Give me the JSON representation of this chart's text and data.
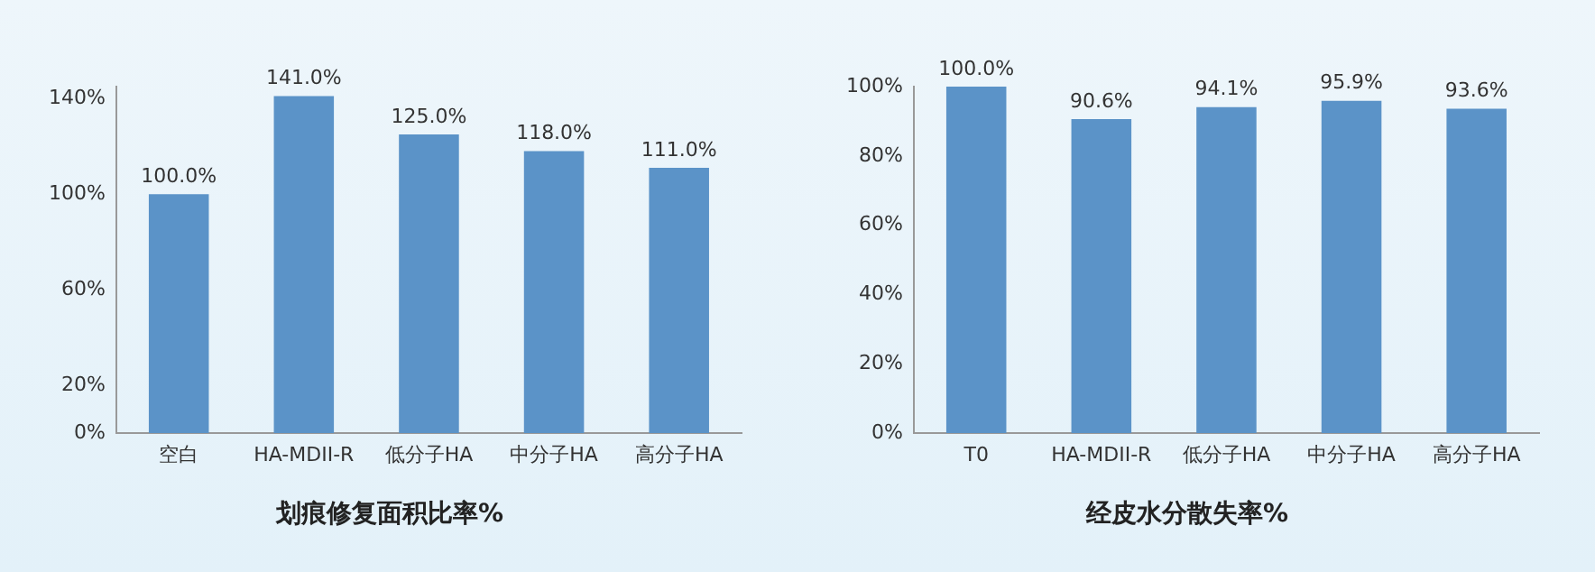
{
  "chart_data": [
    {
      "type": "bar",
      "title": "划痕修复面积比率%",
      "categories": [
        "空白",
        "HA-MDII-R",
        "低分子HA",
        "中分子HA",
        "高分子HA"
      ],
      "values": [
        100,
        141,
        125,
        118,
        111
      ],
      "value_labels": [
        "100.0%",
        "141.0%",
        "125.0%",
        "118.0%",
        "111.0%"
      ],
      "color": "#5b93c8",
      "ylim": [
        0,
        145
      ],
      "yticks": [
        {
          "value": 0,
          "label": "0%"
        },
        {
          "value": 20,
          "label": "20%"
        },
        {
          "value": 60,
          "label": "60%"
        },
        {
          "value": 100,
          "label": "100%"
        },
        {
          "value": 140,
          "label": "140%"
        }
      ],
      "grid": false,
      "legend": false
    },
    {
      "type": "bar",
      "title": "经皮水分散失率%",
      "categories": [
        "T0",
        "HA-MDII-R",
        "低分子HA",
        "中分子HA",
        "高分子HA"
      ],
      "values": [
        100,
        90.6,
        94.1,
        95.9,
        93.6
      ],
      "value_labels": [
        "100.0%",
        "90.6%",
        "94.1%",
        "95.9%",
        "93.6%"
      ],
      "color": "#5b93c8",
      "ylim": [
        0,
        100
      ],
      "yticks": [
        {
          "value": 0,
          "label": "0%"
        },
        {
          "value": 20,
          "label": "20%"
        },
        {
          "value": 40,
          "label": "40%"
        },
        {
          "value": 60,
          "label": "60%"
        },
        {
          "value": 80,
          "label": "80%"
        },
        {
          "value": 100,
          "label": "100%"
        }
      ],
      "grid": false,
      "legend": false
    }
  ]
}
